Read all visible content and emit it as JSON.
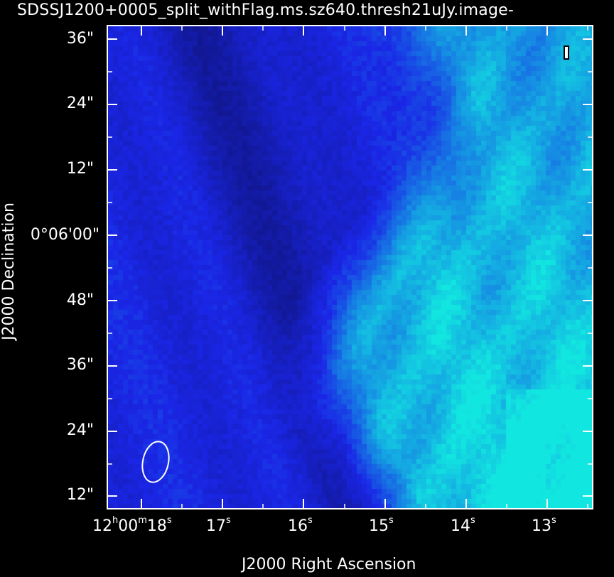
{
  "title": "SDSSJ1200+0005_split_withFlag.ms.sz640.thresh21uJy.image-",
  "xaxis": {
    "label": "J2000 Right Ascension",
    "ticks": [
      {
        "main": "12",
        "sup1": "h",
        "mid": "00",
        "sup2": "m",
        "end": "18",
        "sup3": "s"
      },
      {
        "main": "17",
        "sup1": "s"
      },
      {
        "main": "16",
        "sup1": "s"
      },
      {
        "main": "15",
        "sup1": "s"
      },
      {
        "main": "14",
        "sup1": "s"
      },
      {
        "main": "13",
        "sup1": "s"
      }
    ]
  },
  "yaxis": {
    "label": "J2000 Declination",
    "ticks": [
      "36\"",
      "24\"",
      "12\"",
      "0°06'00\"",
      "48\"",
      "36\"",
      "24\"",
      "12\""
    ]
  },
  "colors": {
    "dark": "#0a0a45",
    "mid": "#1a26e6",
    "bright": "#12e6e0"
  }
}
